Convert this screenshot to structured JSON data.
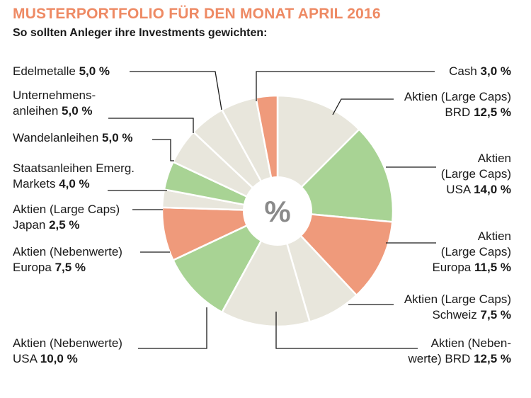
{
  "header": {
    "title": "MUSTERPORTFOLIO FÜR DEN MONAT APRIL 2016",
    "subtitle": "So sollten Anleger ihre Investments gewichten:"
  },
  "colors": {
    "beige": "#e8e6dc",
    "green": "#a8d394",
    "salmon": "#ef9a7b",
    "title": "#ee8a64"
  },
  "chart_data": {
    "type": "pie",
    "center_label": "%",
    "slices": [
      {
        "name": "Aktien (Large Caps) BRD",
        "value": 12.5,
        "value_label": "12,5 %",
        "color": "#e8e6dc",
        "name_lines": [
          "Aktien (Large Caps)",
          "BRD"
        ]
      },
      {
        "name": "Aktien (Large Caps) USA",
        "value": 14.0,
        "value_label": "14,0 %",
        "color": "#a8d394",
        "name_lines": [
          "Aktien",
          "(Large Caps)",
          "USA"
        ]
      },
      {
        "name": "Aktien (Large Caps) Europa",
        "value": 11.5,
        "value_label": "11,5 %",
        "color": "#ef9a7b",
        "name_lines": [
          "Aktien",
          "(Large Caps)",
          "Europa"
        ]
      },
      {
        "name": "Aktien (Large Caps) Schweiz",
        "value": 7.5,
        "value_label": "7,5 %",
        "color": "#e8e6dc",
        "name_lines": [
          "Aktien (Large Caps)",
          "Schweiz"
        ]
      },
      {
        "name": "Aktien (Nebenwerte) BRD",
        "value": 12.5,
        "value_label": "12,5 %",
        "color": "#e8e6dc",
        "name_lines": [
          "Aktien (Neben-",
          "werte) BRD"
        ]
      },
      {
        "name": "Aktien (Nebenwerte) USA",
        "value": 10.0,
        "value_label": "10,0 %",
        "color": "#a8d394",
        "name_lines": [
          "Aktien (Nebenwerte)",
          "USA"
        ]
      },
      {
        "name": "Aktien (Nebenwerte) Europa",
        "value": 7.5,
        "value_label": "7,5 %",
        "color": "#ef9a7b",
        "name_lines": [
          "Aktien (Nebenwerte)",
          "Europa"
        ]
      },
      {
        "name": "Aktien (Large Caps) Japan",
        "value": 2.5,
        "value_label": "2,5 %",
        "color": "#e8e6dc",
        "name_lines": [
          "Aktien (Large Caps)",
          "Japan"
        ]
      },
      {
        "name": "Staatsanleihen Emerg. Markets",
        "value": 4.0,
        "value_label": "4,0 %",
        "color": "#a8d394",
        "name_lines": [
          "Staatsanleihen Emerg.",
          "Markets"
        ]
      },
      {
        "name": "Wandelanleihen",
        "value": 5.0,
        "value_label": "5,0 %",
        "color": "#e8e6dc",
        "name_lines": [
          "Wandelanleihen"
        ]
      },
      {
        "name": "Unternehmensanleihen",
        "value": 5.0,
        "value_label": "5,0 %",
        "color": "#e8e6dc",
        "name_lines": [
          "Unternehmens-",
          "anleihen"
        ]
      },
      {
        "name": "Edelmetalle",
        "value": 5.0,
        "value_label": "5,0 %",
        "color": "#e8e6dc",
        "name_lines": [
          "Edelmetalle"
        ]
      },
      {
        "name": "Cash",
        "value": 3.0,
        "value_label": "3,0 %",
        "color": "#ef9a7b",
        "name_lines": [
          "Cash"
        ]
      }
    ]
  }
}
